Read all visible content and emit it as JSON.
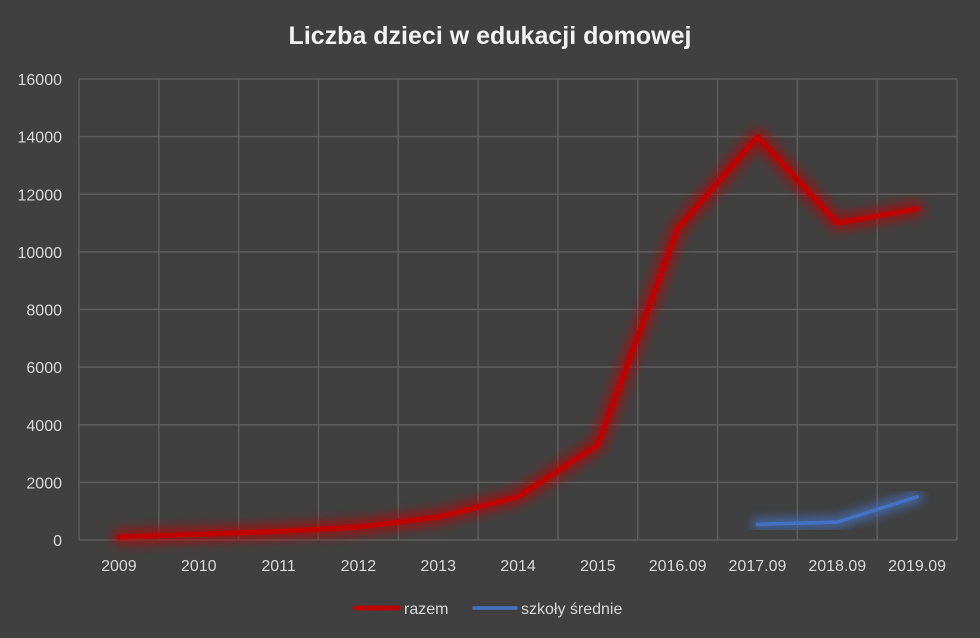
{
  "chart_data": {
    "type": "line",
    "title": "Liczba dzieci w edukacji domowej",
    "xlabel": "",
    "ylabel": "",
    "categories": [
      "2009",
      "2010",
      "2011",
      "2012",
      "2013",
      "2014",
      "2015",
      "2016.09",
      "2017.09",
      "2018.09",
      "2019.09"
    ],
    "ylim": [
      0,
      16000
    ],
    "yticks": [
      0,
      2000,
      4000,
      6000,
      8000,
      10000,
      12000,
      14000,
      16000
    ],
    "grid": true,
    "legend_position": "bottom",
    "background": "#404040",
    "series": [
      {
        "name": "razem",
        "color": "#c00000",
        "values": [
          100,
          200,
          300,
          450,
          800,
          1500,
          3300,
          10800,
          14000,
          11000,
          11500
        ]
      },
      {
        "name": "szkoły średnie",
        "color": "#4472c4",
        "values": [
          null,
          null,
          null,
          null,
          null,
          null,
          null,
          null,
          550,
          620,
          1500
        ]
      }
    ]
  }
}
